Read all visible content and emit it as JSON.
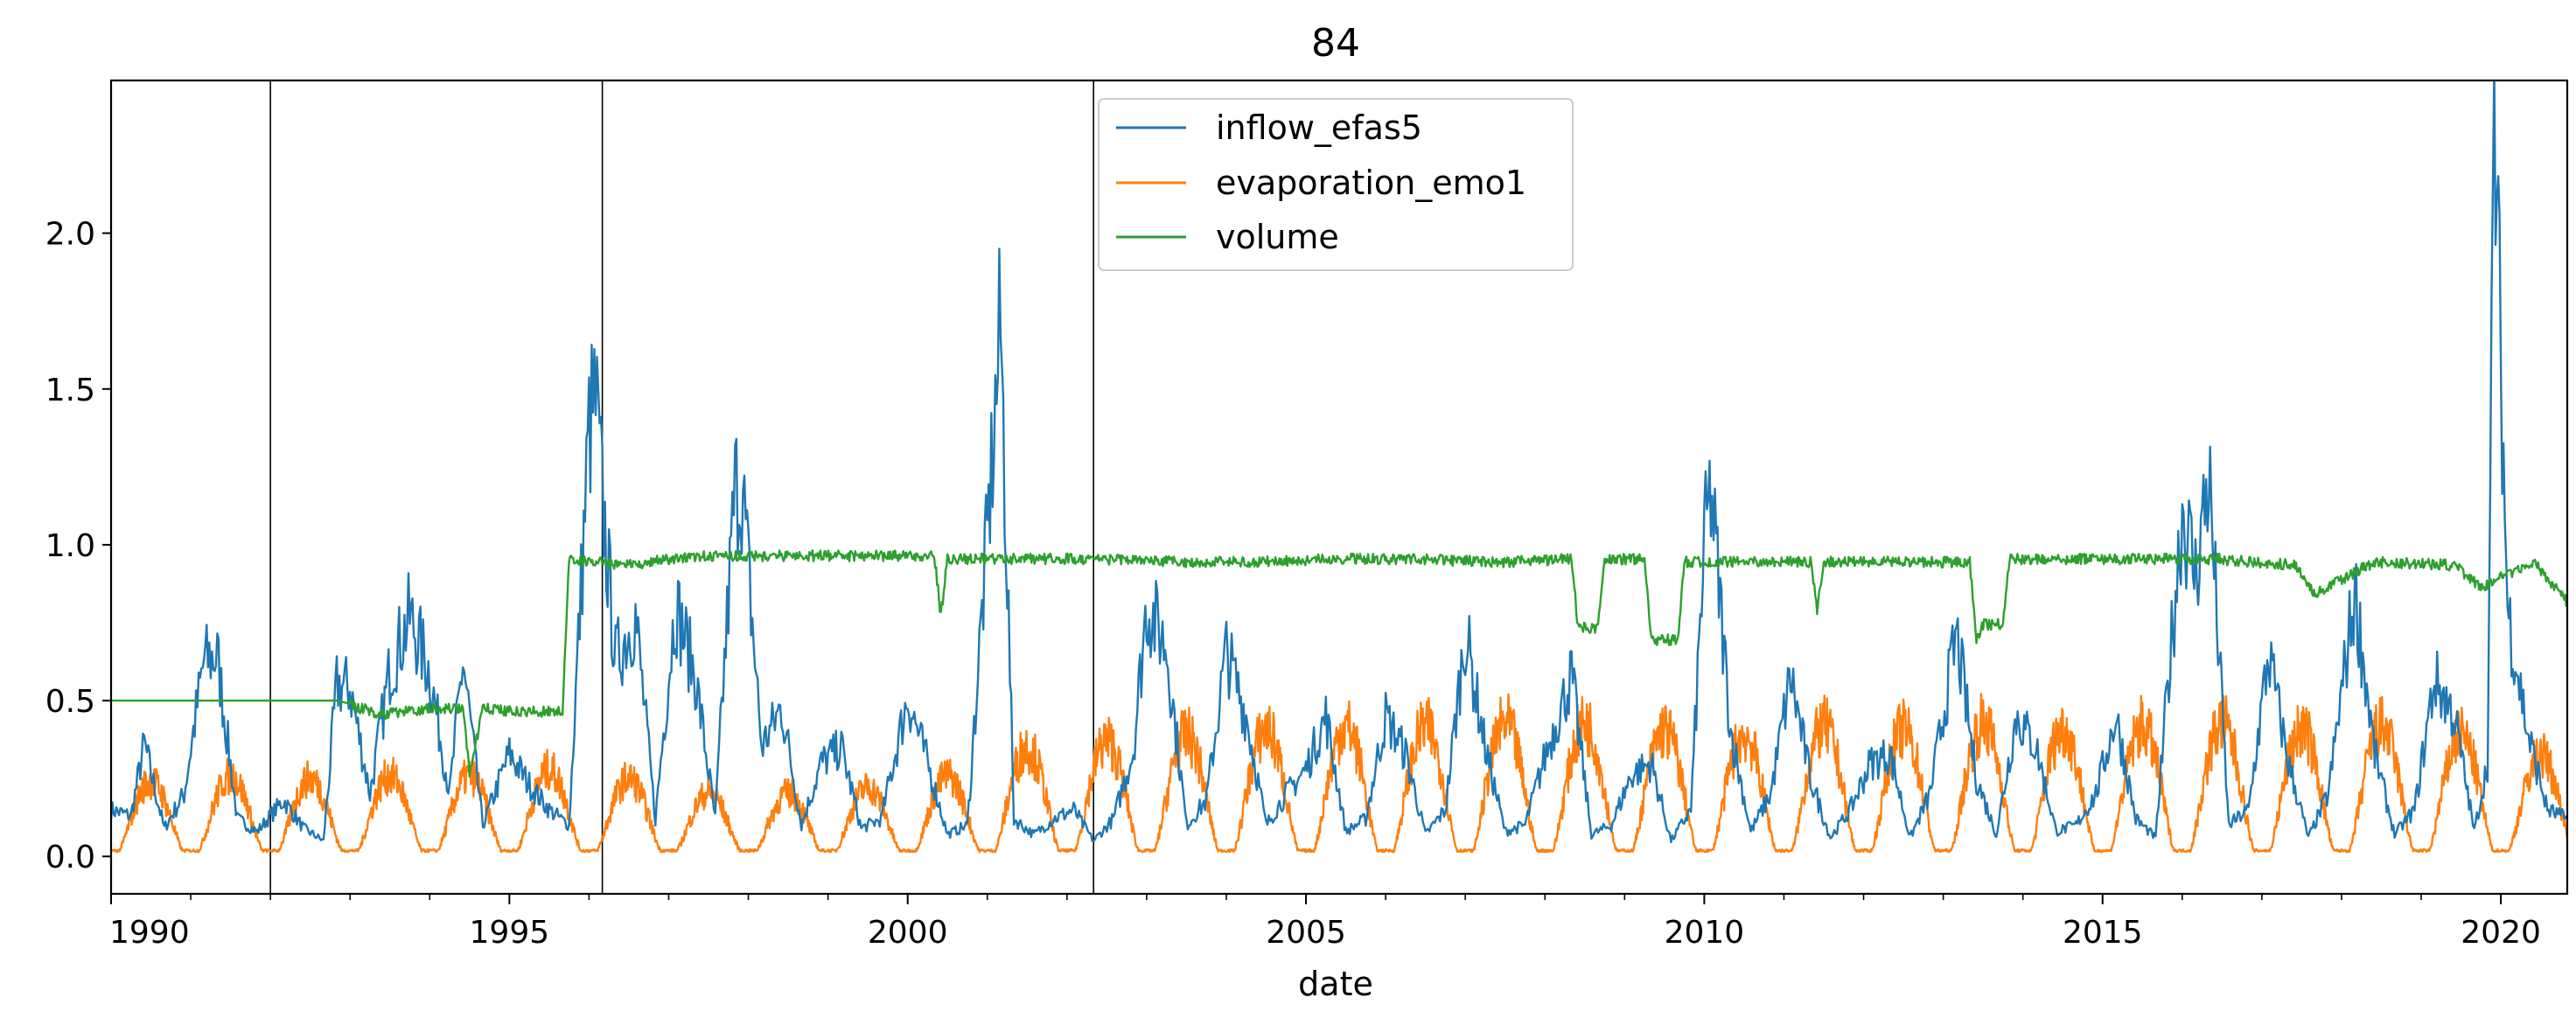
{
  "chart_data": {
    "type": "line",
    "title": "84",
    "xlabel": "date",
    "ylabel": "",
    "xlim": [
      "1990-01-01",
      "2020-11-01"
    ],
    "ylim": [
      -0.12,
      2.49
    ],
    "x_ticks": [
      "1990",
      "1995",
      "2000",
      "2005",
      "2010",
      "2015",
      "2020"
    ],
    "y_ticks": [
      "0.0",
      "0.5",
      "1.0",
      "1.5",
      "2.0"
    ],
    "grid": false,
    "legend_position": "top-center",
    "vertical_lines": [
      "1992-01-01",
      "1996-03-01",
      "2002-05-01"
    ],
    "series": [
      {
        "name": "inflow_efas5",
        "color": "#1f77b4",
        "points": [
          [
            "1990-01-01",
            0.15
          ],
          [
            "1990-04-01",
            0.13
          ],
          [
            "1990-06-01",
            0.36
          ],
          [
            "1990-09-01",
            0.09
          ],
          [
            "1990-12-01",
            0.2
          ],
          [
            "1991-03-01",
            0.63
          ],
          [
            "1991-05-01",
            0.64
          ],
          [
            "1991-08-01",
            0.12
          ],
          [
            "1991-11-01",
            0.08
          ],
          [
            "1992-03-01",
            0.18
          ],
          [
            "1992-06-01",
            0.09
          ],
          [
            "1992-09-01",
            0.05
          ],
          [
            "1992-11-01",
            0.55
          ],
          [
            "1993-01-01",
            0.54
          ],
          [
            "1993-04-01",
            0.2
          ],
          [
            "1993-07-01",
            0.6
          ],
          [
            "1993-10-01",
            0.77
          ],
          [
            "1994-01-01",
            0.59
          ],
          [
            "1994-04-01",
            0.2
          ],
          [
            "1994-06-01",
            0.63
          ],
          [
            "1994-09-01",
            0.1
          ],
          [
            "1995-01-01",
            0.33
          ],
          [
            "1995-04-01",
            0.23
          ],
          [
            "1995-07-01",
            0.15
          ],
          [
            "1995-10-01",
            0.1
          ],
          [
            "1996-01-01",
            1.37
          ],
          [
            "1996-02-01",
            1.46
          ],
          [
            "1996-03-01",
            1.15
          ],
          [
            "1996-05-01",
            0.63
          ],
          [
            "1996-08-01",
            0.77
          ],
          [
            "1996-11-01",
            0.12
          ],
          [
            "1997-02-01",
            0.81
          ],
          [
            "1997-05-01",
            0.58
          ],
          [
            "1997-08-01",
            0.12
          ],
          [
            "1997-11-01",
            1.18
          ],
          [
            "1997-12-01",
            1.2
          ],
          [
            "1998-03-01",
            0.35
          ],
          [
            "1998-06-01",
            0.48
          ],
          [
            "1998-09-01",
            0.1
          ],
          [
            "1998-12-01",
            0.3
          ],
          [
            "1999-03-01",
            0.35
          ],
          [
            "1999-06-01",
            0.09
          ],
          [
            "1999-09-01",
            0.12
          ],
          [
            "2000-01-01",
            0.51
          ],
          [
            "2000-04-01",
            0.3
          ],
          [
            "2000-07-01",
            0.07
          ],
          [
            "2000-10-01",
            0.1
          ],
          [
            "2001-01-01",
            1.03
          ],
          [
            "2001-03-01",
            1.7
          ],
          [
            "2001-05-01",
            0.12
          ],
          [
            "2001-08-01",
            0.07
          ],
          [
            "2001-11-01",
            0.12
          ],
          [
            "2002-02-01",
            0.15
          ],
          [
            "2002-05-01",
            0.05
          ],
          [
            "2002-08-01",
            0.12
          ],
          [
            "2002-11-01",
            0.34
          ],
          [
            "2003-01-01",
            0.81
          ],
          [
            "2003-04-01",
            0.67
          ],
          [
            "2003-07-01",
            0.1
          ],
          [
            "2003-10-01",
            0.18
          ],
          [
            "2004-01-01",
            0.66
          ],
          [
            "2004-04-01",
            0.45
          ],
          [
            "2004-07-01",
            0.1
          ],
          [
            "2004-10-01",
            0.2
          ],
          [
            "2005-01-01",
            0.28
          ],
          [
            "2005-04-01",
            0.45
          ],
          [
            "2005-07-01",
            0.08
          ],
          [
            "2005-10-01",
            0.12
          ],
          [
            "2006-01-01",
            0.45
          ],
          [
            "2006-04-01",
            0.33
          ],
          [
            "2006-07-01",
            0.07
          ],
          [
            "2006-10-01",
            0.15
          ],
          [
            "2007-01-01",
            0.72
          ],
          [
            "2007-04-01",
            0.35
          ],
          [
            "2007-07-01",
            0.08
          ],
          [
            "2007-10-01",
            0.1
          ],
          [
            "2008-01-01",
            0.32
          ],
          [
            "2008-05-01",
            0.58
          ],
          [
            "2008-08-01",
            0.07
          ],
          [
            "2008-11-01",
            0.1
          ],
          [
            "2009-02-01",
            0.26
          ],
          [
            "2009-05-01",
            0.3
          ],
          [
            "2009-08-01",
            0.05
          ],
          [
            "2009-11-01",
            0.15
          ],
          [
            "2010-01-01",
            1.0
          ],
          [
            "2010-02-01",
            1.17
          ],
          [
            "2010-05-01",
            0.4
          ],
          [
            "2010-08-01",
            0.08
          ],
          [
            "2010-11-01",
            0.2
          ],
          [
            "2011-02-01",
            0.58
          ],
          [
            "2011-05-01",
            0.25
          ],
          [
            "2011-08-01",
            0.06
          ],
          [
            "2011-11-01",
            0.15
          ],
          [
            "2012-02-01",
            0.3
          ],
          [
            "2012-05-01",
            0.33
          ],
          [
            "2012-08-01",
            0.06
          ],
          [
            "2012-11-01",
            0.2
          ],
          [
            "2013-03-01",
            0.71
          ],
          [
            "2013-06-01",
            0.25
          ],
          [
            "2013-09-01",
            0.07
          ],
          [
            "2013-12-01",
            0.45
          ],
          [
            "2014-03-01",
            0.35
          ],
          [
            "2014-06-01",
            0.08
          ],
          [
            "2014-09-01",
            0.1
          ],
          [
            "2014-12-01",
            0.2
          ],
          [
            "2015-03-01",
            0.45
          ],
          [
            "2015-06-01",
            0.12
          ],
          [
            "2015-09-01",
            0.06
          ],
          [
            "2016-01-01",
            1.12
          ],
          [
            "2016-03-01",
            0.9
          ],
          [
            "2016-05-01",
            1.23
          ],
          [
            "2016-08-01",
            0.1
          ],
          [
            "2016-11-01",
            0.15
          ],
          [
            "2017-02-01",
            0.65
          ],
          [
            "2017-05-01",
            0.3
          ],
          [
            "2017-08-01",
            0.06
          ],
          [
            "2017-11-01",
            0.2
          ],
          [
            "2018-03-01",
            0.85
          ],
          [
            "2018-06-01",
            0.33
          ],
          [
            "2018-09-01",
            0.07
          ],
          [
            "2018-12-01",
            0.15
          ],
          [
            "2019-03-01",
            0.57
          ],
          [
            "2019-06-01",
            0.45
          ],
          [
            "2019-09-01",
            0.08
          ],
          [
            "2019-11-01",
            0.3
          ],
          [
            "2019-12-01",
            2.37
          ],
          [
            "2020-02-01",
            0.8
          ],
          [
            "2020-05-01",
            0.4
          ],
          [
            "2020-08-01",
            0.15
          ],
          [
            "2020-11-01",
            0.12
          ]
        ]
      },
      {
        "name": "evaporation_emo1",
        "color": "#ff7f0e",
        "seasonal": {
          "start_year": 1990,
          "end_year": 2020,
          "winter_level": 0.02,
          "summer_peaks": [
            0.26,
            0.28,
            0.27,
            0.28,
            0.28,
            0.3,
            0.27,
            0.22,
            0.22,
            0.24,
            0.28,
            0.38,
            0.4,
            0.42,
            0.44,
            0.45,
            0.45,
            0.46,
            0.46,
            0.44,
            0.42,
            0.45,
            0.44,
            0.46,
            0.44,
            0.45,
            0.46,
            0.44,
            0.45,
            0.42,
            0.35
          ]
        }
      },
      {
        "name": "volume",
        "color": "#2ca02c",
        "points": [
          [
            "1990-01-01",
            0.5
          ],
          [
            "1992-11-01",
            0.5
          ],
          [
            "1993-01-01",
            0.49
          ],
          [
            "1993-06-01",
            0.46
          ],
          [
            "1994-01-01",
            0.48
          ],
          [
            "1994-06-01",
            0.48
          ],
          [
            "1994-07-01",
            0.27
          ],
          [
            "1994-09-01",
            0.48
          ],
          [
            "1995-03-01",
            0.47
          ],
          [
            "1995-09-01",
            0.47
          ],
          [
            "1995-10-01",
            0.96
          ],
          [
            "1996-06-01",
            0.94
          ],
          [
            "1997-06-01",
            0.97
          ],
          [
            "1998-06-01",
            0.97
          ],
          [
            "1999-06-01",
            0.97
          ],
          [
            "2000-05-01",
            0.97
          ],
          [
            "2000-06-01",
            0.78
          ],
          [
            "2000-07-01",
            0.96
          ],
          [
            "2001-06-01",
            0.96
          ],
          [
            "2002-06-01",
            0.96
          ],
          [
            "2003-06-01",
            0.95
          ],
          [
            "2004-06-01",
            0.95
          ],
          [
            "2005-06-01",
            0.96
          ],
          [
            "2006-06-01",
            0.96
          ],
          [
            "2007-06-01",
            0.95
          ],
          [
            "2008-05-01",
            0.96
          ],
          [
            "2008-06-01",
            0.74
          ],
          [
            "2008-09-01",
            0.74
          ],
          [
            "2008-10-01",
            0.96
          ],
          [
            "2009-04-01",
            0.96
          ],
          [
            "2009-05-01",
            0.7
          ],
          [
            "2009-09-01",
            0.7
          ],
          [
            "2009-10-01",
            0.95
          ],
          [
            "2010-06-01",
            0.95
          ],
          [
            "2011-05-01",
            0.95
          ],
          [
            "2011-06-01",
            0.8
          ],
          [
            "2011-07-01",
            0.95
          ],
          [
            "2012-06-01",
            0.95
          ],
          [
            "2013-05-01",
            0.95
          ],
          [
            "2013-06-01",
            0.7
          ],
          [
            "2013-07-01",
            0.75
          ],
          [
            "2013-10-01",
            0.75
          ],
          [
            "2013-11-01",
            0.96
          ],
          [
            "2014-06-01",
            0.96
          ],
          [
            "2015-06-01",
            0.96
          ],
          [
            "2016-06-01",
            0.96
          ],
          [
            "2017-06-01",
            0.94
          ],
          [
            "2017-09-01",
            0.85
          ],
          [
            "2018-06-01",
            0.95
          ],
          [
            "2019-06-01",
            0.94
          ],
          [
            "2019-10-01",
            0.87
          ],
          [
            "2020-06-01",
            0.95
          ],
          [
            "2020-11-01",
            0.82
          ]
        ]
      }
    ]
  }
}
